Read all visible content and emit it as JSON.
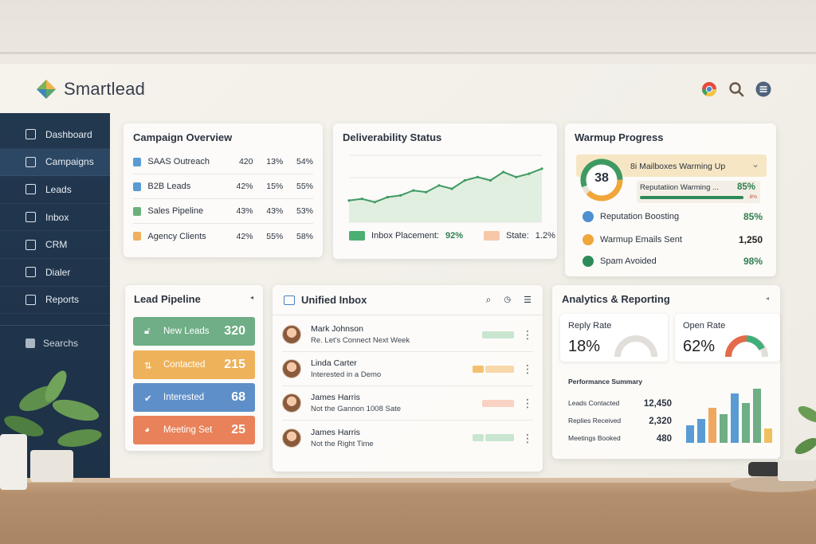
{
  "app": {
    "name": "Smartlead"
  },
  "top_icons": [
    "chrome-icon",
    "search-icon",
    "menu-icon"
  ],
  "sidebar": {
    "items": [
      {
        "label": "Dashboard",
        "icon": "dashboard-icon"
      },
      {
        "label": "Campaigns",
        "icon": "campaigns-icon",
        "active": true
      },
      {
        "label": "Leads",
        "icon": "leads-icon"
      },
      {
        "label": "Inbox",
        "icon": "inbox-icon"
      },
      {
        "label": "CRM",
        "icon": "crm-icon"
      },
      {
        "label": "Dialer",
        "icon": "dialer-icon"
      },
      {
        "label": "Reports",
        "icon": "reports-icon"
      }
    ],
    "search_label": "Searchs"
  },
  "campaign_overview": {
    "title": "Campaign Overview",
    "rows": [
      {
        "name": "SAAS Outreach",
        "v1": "420",
        "v2": "13%",
        "v3": "54%",
        "color": "#5a9bd4"
      },
      {
        "name": "B2B Leads",
        "v1": "42%",
        "v2": "15%",
        "v3": "55%",
        "color": "#5a9bd4"
      },
      {
        "name": "Sales Pipeline",
        "v1": "43%",
        "v2": "43%",
        "v3": "53%",
        "color": "#6bb07a"
      },
      {
        "name": "Agency Clients",
        "v1": "42%",
        "v2": "55%",
        "v3": "58%",
        "color": "#f0b060"
      }
    ]
  },
  "deliverability": {
    "title": "Deliverability Status",
    "legend_1_label": "Inbox Placement:",
    "legend_1_value": "92%",
    "legend_2_label": "State:",
    "legend_2_value": "1.2%",
    "legend_1_color": "#4caf72",
    "legend_2_color": "#f7c8a8"
  },
  "warmup": {
    "title": "Warmup Progress",
    "gauge_value": "38",
    "band_label": "8i Mailboxes Warming  Up",
    "rep_label": "Reputatiion Warming ...",
    "rep_value": "85%",
    "rep_sub": "8%",
    "rows": [
      {
        "label": "Reputation Boosting",
        "value": "85%",
        "color": "#4f8fd0"
      },
      {
        "label": "Warmup Emails Sent",
        "value": "1,250",
        "color": "#f0a63a"
      },
      {
        "label": "Spam Avoided",
        "value": "98%",
        "color": "#2e8b57"
      }
    ]
  },
  "lead_pipeline": {
    "title": "Lead Pipeline",
    "stages": [
      {
        "label": "New Leads",
        "value": "320",
        "color": "#6fae86"
      },
      {
        "label": "Contacted",
        "value": "215",
        "color": "#eeb25a"
      },
      {
        "label": "Interested",
        "value": "68",
        "color": "#5e8fc8"
      },
      {
        "label": "Meeting Set",
        "value": "25",
        "color": "#e9825a"
      }
    ]
  },
  "unified_inbox": {
    "title": "Unified Inbox",
    "messages": [
      {
        "name": "Mark Johnson",
        "subject": "Re. Let's Connect Next Week"
      },
      {
        "name": "Linda Carter",
        "subject": "Interested in a Demo"
      },
      {
        "name": "James Harris",
        "subject": "Not the Gannon 1008 Sate"
      },
      {
        "name": "James Harris",
        "subject": "Not the Right Time"
      }
    ]
  },
  "analytics": {
    "title": "Analytics & Reporting",
    "reply_rate_label": "Reply Rate",
    "reply_rate_value": "18%",
    "open_rate_label": "Open Rate",
    "open_rate_value": "62%",
    "summary_title": "Performance Summary",
    "summary": [
      {
        "label": "Leads Contacted",
        "value": "12,450"
      },
      {
        "label": "Replies Received",
        "value": "2,320"
      },
      {
        "label": "Meetings Booked",
        "value": "480"
      }
    ]
  },
  "chart_data": [
    {
      "type": "line",
      "x": [
        1,
        2,
        3,
        4,
        5,
        6,
        7,
        8,
        9,
        10,
        11,
        12,
        13,
        14,
        15,
        16
      ],
      "values": [
        43,
        44,
        42,
        45,
        46,
        49,
        48,
        52,
        50,
        55,
        57,
        55,
        60,
        57,
        59,
        62
      ],
      "ylim": [
        30,
        70
      ]
    },
    {
      "type": "bar",
      "values": [
        22,
        30,
        44,
        36,
        62,
        50,
        68,
        18
      ],
      "colors": [
        "#5a9bd4",
        "#5a9bd4",
        "#f0a860",
        "#6fae86",
        "#5a9bd4",
        "#6fae86",
        "#6fae86",
        "#f0c060"
      ]
    }
  ]
}
